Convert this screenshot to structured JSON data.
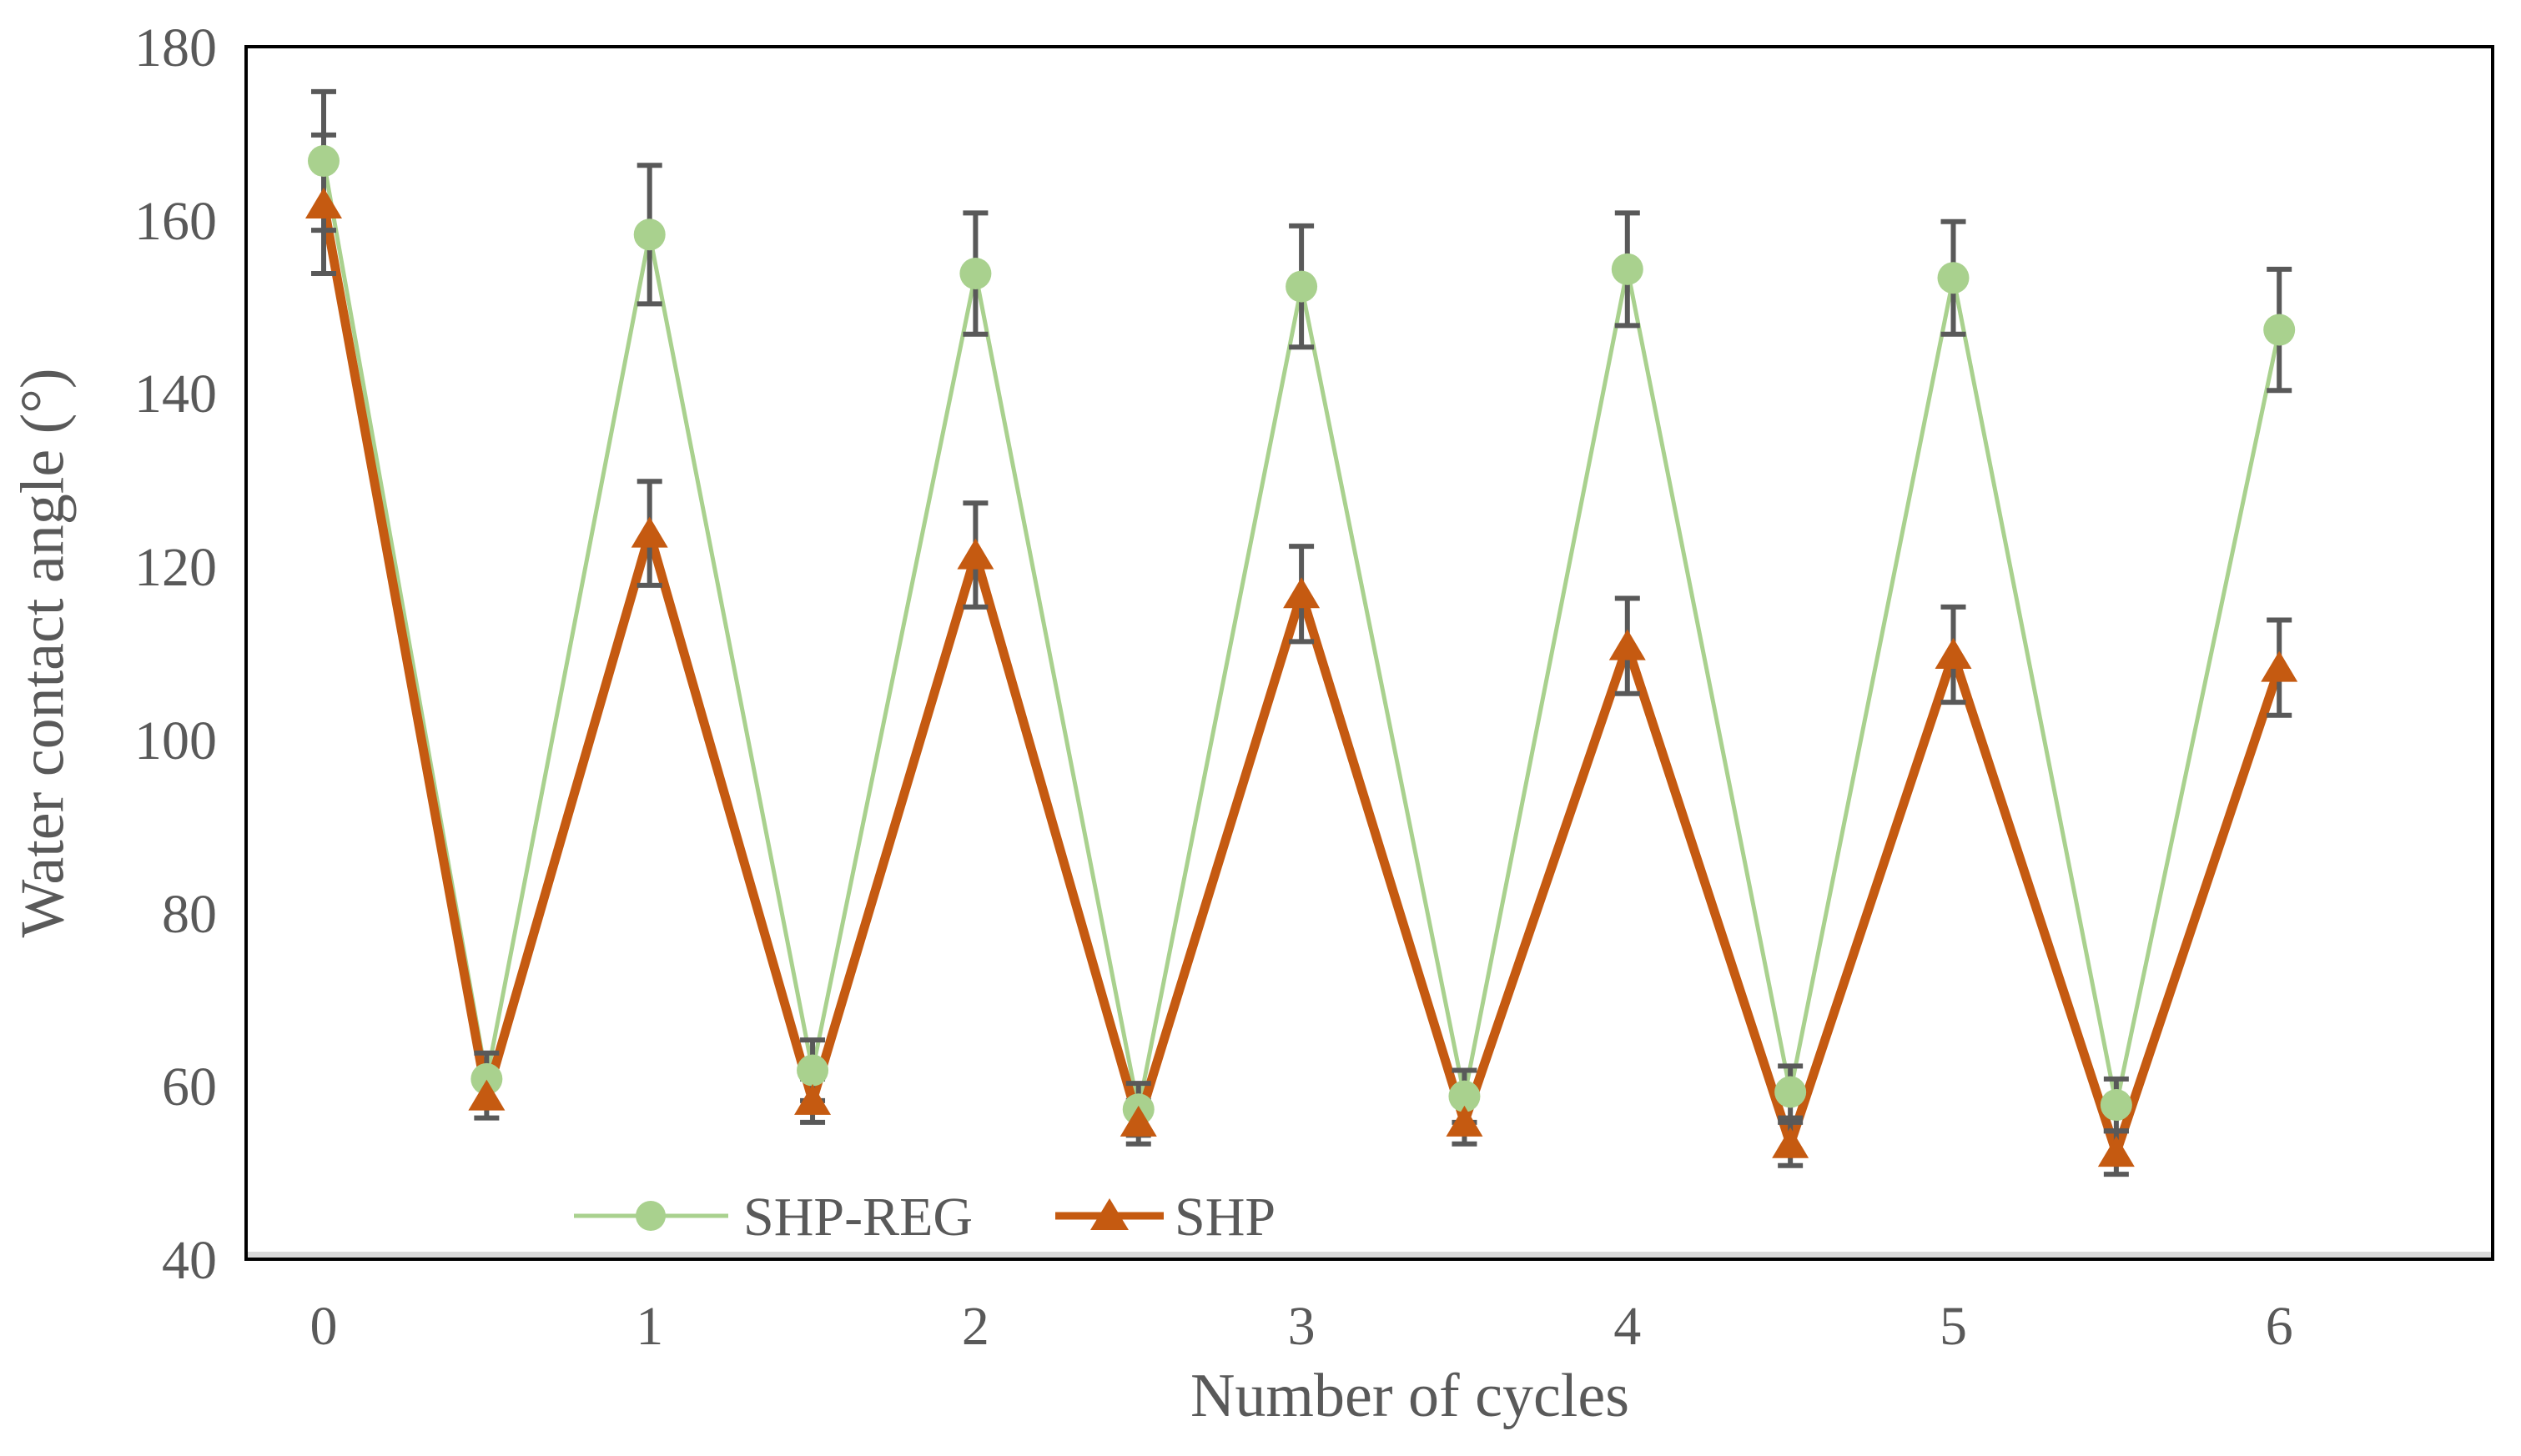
{
  "chart_data": {
    "type": "line",
    "title": "",
    "xlabel": "Number of cycles",
    "ylabel": "Water contact angle (°)",
    "x_ticks": [
      "0",
      "1",
      "2",
      "3",
      "4",
      "5",
      "6"
    ],
    "y_ticks": [
      "40",
      "60",
      "80",
      "100",
      "120",
      "140",
      "160",
      "180"
    ],
    "xlim": [
      -0.25,
      6.66
    ],
    "ylim": [
      40,
      180
    ],
    "grid": false,
    "legend_position": "inside-bottom-left",
    "x": [
      0,
      0.5,
      1,
      1.5,
      2,
      2.5,
      3,
      3.5,
      4,
      4.5,
      5,
      5.5,
      6
    ],
    "series": [
      {
        "name": "SHP-REG",
        "marker": "circle",
        "color": "#a9d18e",
        "line_width": 5,
        "values": [
          167,
          61,
          158.5,
          62,
          154,
          57.5,
          152.5,
          59,
          154.5,
          59.5,
          153.5,
          58,
          147.5
        ],
        "errors": [
          8,
          3,
          8,
          3.5,
          7,
          3,
          7,
          3,
          6.5,
          3,
          6.5,
          3,
          7
        ]
      },
      {
        "name": "SHP",
        "marker": "triangle",
        "color": "#c55a11",
        "line_width": 11,
        "values": [
          162,
          59,
          124,
          58.5,
          121.5,
          56,
          117,
          56,
          111,
          53.5,
          110,
          52.5,
          108.5
        ],
        "errors": [
          8,
          2.5,
          6,
          2.5,
          6,
          2.5,
          5.5,
          2.5,
          5.5,
          2.5,
          5.5,
          2.5,
          5.5
        ]
      }
    ],
    "error_bar_color": "#595959",
    "axis_line_color": "#d9d9d9",
    "plot_border_color": "#000000",
    "text_color": "#595959"
  }
}
